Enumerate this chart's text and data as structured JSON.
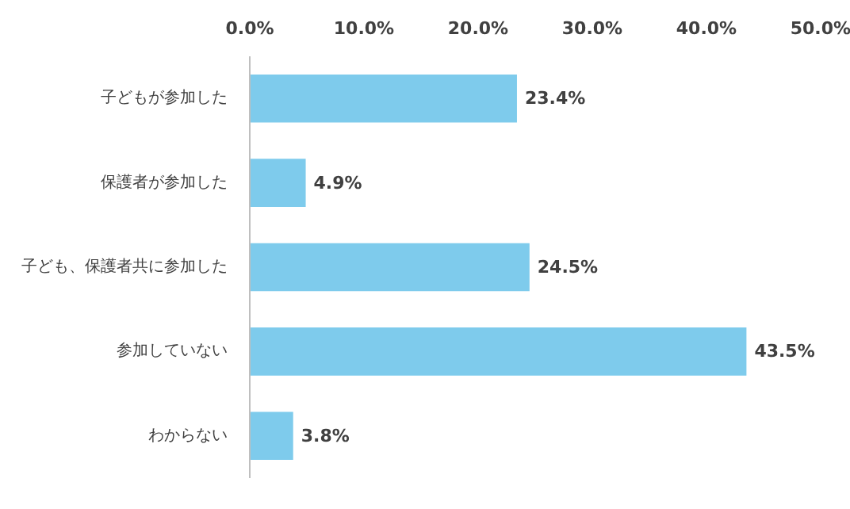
{
  "chart_data": {
    "type": "bar",
    "orientation": "horizontal",
    "categories": [
      "子どもが参加した",
      "保護者が参加した",
      "子ども、保護者共に参加した",
      "参加していない",
      "わからない"
    ],
    "values": [
      23.4,
      4.9,
      24.5,
      43.5,
      3.8
    ],
    "value_labels": [
      "23.4%",
      "4.9%",
      "24.5%",
      "43.5%",
      "3.8%"
    ],
    "color": "#7ecbec",
    "xlim": [
      0,
      50
    ],
    "xticks": [
      {
        "value": 0,
        "label": "0.0%"
      },
      {
        "value": 10,
        "label": "10.0%"
      },
      {
        "value": 20,
        "label": "20.0%"
      },
      {
        "value": 30,
        "label": "30.0%"
      },
      {
        "value": 40,
        "label": "40.0%"
      },
      {
        "value": 50,
        "label": "50.0%"
      }
    ],
    "grid": false
  }
}
